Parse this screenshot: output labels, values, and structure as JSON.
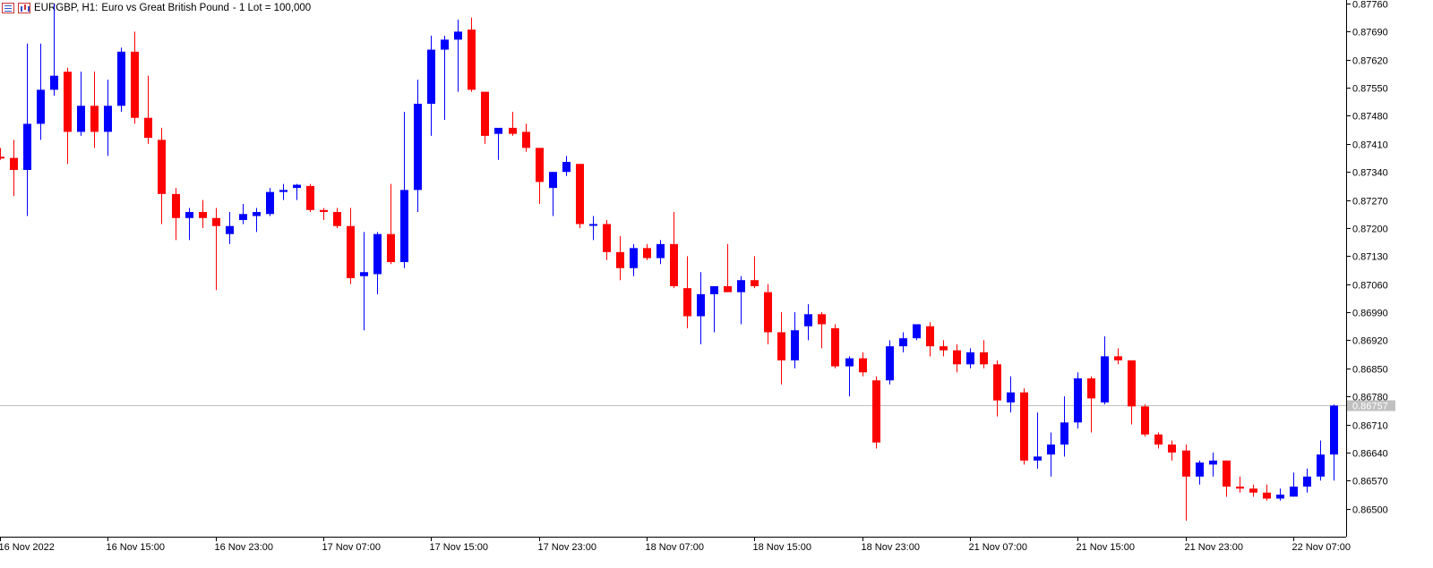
{
  "header": {
    "symbol": "EURGBP, H1:",
    "description": "Euro vs Great British Pound",
    "lot": "- 1 Lot = 100,000",
    "list_icon": "table-list-icon",
    "bars_icon": "bar-chart-icon"
  },
  "colors": {
    "bull": "#0000ff",
    "bear": "#ff0000",
    "axis": "#000000",
    "price_line": "#c0c0c0",
    "price_label_bg": "#c0c0c0",
    "price_label_text": "#ffffff"
  },
  "chart_data": {
    "type": "candlestick",
    "symbol": "EURGBP",
    "timeframe": "H1",
    "ylim": [
      0.8643,
      0.8776
    ],
    "grid": false,
    "y_ticks": [
      "0.87760",
      "0.87690",
      "0.87620",
      "0.87550",
      "0.87480",
      "0.87410",
      "0.87340",
      "0.87270",
      "0.87200",
      "0.87130",
      "0.87060",
      "0.86990",
      "0.86920",
      "0.86850",
      "0.86780",
      "0.86710",
      "0.86640",
      "0.86570",
      "0.86500"
    ],
    "x_labels": [
      "16 Nov 2022",
      "16 Nov 15:00",
      "16 Nov 23:00",
      "17 Nov 07:00",
      "17 Nov 15:00",
      "17 Nov 23:00",
      "18 Nov 07:00",
      "18 Nov 15:00",
      "18 Nov 23:00",
      "21 Nov 07:00",
      "21 Nov 15:00",
      "21 Nov 23:00",
      "22 Nov 07:00"
    ],
    "current_price": "0.86757",
    "current_value": 0.86757,
    "candles": [
      {
        "o": 0.87378,
        "h": 0.874,
        "l": 0.8737,
        "c": 0.87375
      },
      {
        "o": 0.87375,
        "h": 0.8742,
        "l": 0.8728,
        "c": 0.87345
      },
      {
        "o": 0.87345,
        "h": 0.8766,
        "l": 0.8723,
        "c": 0.8746
      },
      {
        "o": 0.8746,
        "h": 0.8766,
        "l": 0.8742,
        "c": 0.87545
      },
      {
        "o": 0.87545,
        "h": 0.8776,
        "l": 0.8753,
        "c": 0.8758
      },
      {
        "o": 0.8759,
        "h": 0.876,
        "l": 0.8736,
        "c": 0.8744
      },
      {
        "o": 0.8744,
        "h": 0.8759,
        "l": 0.8743,
        "c": 0.87505
      },
      {
        "o": 0.87505,
        "h": 0.8759,
        "l": 0.874,
        "c": 0.8744
      },
      {
        "o": 0.8744,
        "h": 0.8757,
        "l": 0.8738,
        "c": 0.87505
      },
      {
        "o": 0.87505,
        "h": 0.8765,
        "l": 0.8749,
        "c": 0.8764
      },
      {
        "o": 0.8764,
        "h": 0.8769,
        "l": 0.8746,
        "c": 0.87475
      },
      {
        "o": 0.87475,
        "h": 0.8758,
        "l": 0.8741,
        "c": 0.87425
      },
      {
        "o": 0.8742,
        "h": 0.8745,
        "l": 0.8721,
        "c": 0.87285
      },
      {
        "o": 0.87285,
        "h": 0.873,
        "l": 0.8717,
        "c": 0.87225
      },
      {
        "o": 0.87225,
        "h": 0.8725,
        "l": 0.8717,
        "c": 0.8724
      },
      {
        "o": 0.8724,
        "h": 0.8727,
        "l": 0.872,
        "c": 0.87225
      },
      {
        "o": 0.87225,
        "h": 0.8725,
        "l": 0.87045,
        "c": 0.87205
      },
      {
        "o": 0.87185,
        "h": 0.8724,
        "l": 0.8716,
        "c": 0.87205
      },
      {
        "o": 0.8722,
        "h": 0.8726,
        "l": 0.8721,
        "c": 0.87235
      },
      {
        "o": 0.8723,
        "h": 0.8725,
        "l": 0.8719,
        "c": 0.8724
      },
      {
        "o": 0.87235,
        "h": 0.873,
        "l": 0.8723,
        "c": 0.8729
      },
      {
        "o": 0.8729,
        "h": 0.8731,
        "l": 0.8727,
        "c": 0.87295
      },
      {
        "o": 0.873,
        "h": 0.8731,
        "l": 0.8727,
        "c": 0.87308
      },
      {
        "o": 0.87305,
        "h": 0.8731,
        "l": 0.8724,
        "c": 0.87245
      },
      {
        "o": 0.87245,
        "h": 0.8725,
        "l": 0.8722,
        "c": 0.8724
      },
      {
        "o": 0.8724,
        "h": 0.8725,
        "l": 0.872,
        "c": 0.87205
      },
      {
        "o": 0.87205,
        "h": 0.8725,
        "l": 0.8706,
        "c": 0.87075
      },
      {
        "o": 0.8708,
        "h": 0.8719,
        "l": 0.86945,
        "c": 0.8709
      },
      {
        "o": 0.87085,
        "h": 0.8719,
        "l": 0.87035,
        "c": 0.87185
      },
      {
        "o": 0.87185,
        "h": 0.8731,
        "l": 0.8711,
        "c": 0.87115
      },
      {
        "o": 0.87115,
        "h": 0.8749,
        "l": 0.871,
        "c": 0.87295
      },
      {
        "o": 0.87295,
        "h": 0.8757,
        "l": 0.8724,
        "c": 0.8751
      },
      {
        "o": 0.8751,
        "h": 0.8768,
        "l": 0.8743,
        "c": 0.87645
      },
      {
        "o": 0.87645,
        "h": 0.8768,
        "l": 0.8747,
        "c": 0.8767
      },
      {
        "o": 0.8767,
        "h": 0.8772,
        "l": 0.8754,
        "c": 0.8769
      },
      {
        "o": 0.87695,
        "h": 0.87725,
        "l": 0.8754,
        "c": 0.87545
      },
      {
        "o": 0.8754,
        "h": 0.8754,
        "l": 0.8741,
        "c": 0.8743
      },
      {
        "o": 0.87435,
        "h": 0.87445,
        "l": 0.8737,
        "c": 0.8745
      },
      {
        "o": 0.8745,
        "h": 0.8749,
        "l": 0.8743,
        "c": 0.87435
      },
      {
        "o": 0.8744,
        "h": 0.8746,
        "l": 0.8739,
        "c": 0.874
      },
      {
        "o": 0.874,
        "h": 0.874,
        "l": 0.8726,
        "c": 0.87315
      },
      {
        "o": 0.873,
        "h": 0.8734,
        "l": 0.8723,
        "c": 0.8734
      },
      {
        "o": 0.8734,
        "h": 0.8738,
        "l": 0.8733,
        "c": 0.87365
      },
      {
        "o": 0.8736,
        "h": 0.8736,
        "l": 0.872,
        "c": 0.8721
      },
      {
        "o": 0.8721,
        "h": 0.8723,
        "l": 0.8717,
        "c": 0.8721
      },
      {
        "o": 0.8721,
        "h": 0.8722,
        "l": 0.8712,
        "c": 0.8714
      },
      {
        "o": 0.8714,
        "h": 0.8718,
        "l": 0.8707,
        "c": 0.871
      },
      {
        "o": 0.871,
        "h": 0.8716,
        "l": 0.8708,
        "c": 0.8715
      },
      {
        "o": 0.8715,
        "h": 0.8716,
        "l": 0.8712,
        "c": 0.87125
      },
      {
        "o": 0.87125,
        "h": 0.8717,
        "l": 0.8711,
        "c": 0.8716
      },
      {
        "o": 0.8716,
        "h": 0.8724,
        "l": 0.8705,
        "c": 0.87055
      },
      {
        "o": 0.8705,
        "h": 0.8713,
        "l": 0.8695,
        "c": 0.8698
      },
      {
        "o": 0.8698,
        "h": 0.8709,
        "l": 0.8691,
        "c": 0.87035
      },
      {
        "o": 0.87035,
        "h": 0.8705,
        "l": 0.8694,
        "c": 0.87055
      },
      {
        "o": 0.87055,
        "h": 0.8716,
        "l": 0.8704,
        "c": 0.8704
      },
      {
        "o": 0.8704,
        "h": 0.8708,
        "l": 0.8696,
        "c": 0.8707
      },
      {
        "o": 0.8707,
        "h": 0.8713,
        "l": 0.8705,
        "c": 0.87055
      },
      {
        "o": 0.8704,
        "h": 0.8706,
        "l": 0.8691,
        "c": 0.8694
      },
      {
        "o": 0.8694,
        "h": 0.8699,
        "l": 0.8681,
        "c": 0.8687
      },
      {
        "o": 0.8687,
        "h": 0.8699,
        "l": 0.8685,
        "c": 0.86945
      },
      {
        "o": 0.86955,
        "h": 0.8701,
        "l": 0.8692,
        "c": 0.86985
      },
      {
        "o": 0.86985,
        "h": 0.8699,
        "l": 0.869,
        "c": 0.8696
      },
      {
        "o": 0.8695,
        "h": 0.8696,
        "l": 0.8685,
        "c": 0.86855
      },
      {
        "o": 0.86855,
        "h": 0.8688,
        "l": 0.8678,
        "c": 0.86875
      },
      {
        "o": 0.86875,
        "h": 0.8689,
        "l": 0.8683,
        "c": 0.8684
      },
      {
        "o": 0.8682,
        "h": 0.8683,
        "l": 0.8665,
        "c": 0.86665
      },
      {
        "o": 0.8682,
        "h": 0.8692,
        "l": 0.8681,
        "c": 0.86905
      },
      {
        "o": 0.86905,
        "h": 0.8694,
        "l": 0.8689,
        "c": 0.86925
      },
      {
        "o": 0.86925,
        "h": 0.8696,
        "l": 0.8692,
        "c": 0.8696
      },
      {
        "o": 0.86955,
        "h": 0.86965,
        "l": 0.8688,
        "c": 0.86905
      },
      {
        "o": 0.86905,
        "h": 0.8692,
        "l": 0.8688,
        "c": 0.86895
      },
      {
        "o": 0.86895,
        "h": 0.8691,
        "l": 0.8684,
        "c": 0.8686
      },
      {
        "o": 0.8686,
        "h": 0.869,
        "l": 0.8685,
        "c": 0.8689
      },
      {
        "o": 0.8689,
        "h": 0.8692,
        "l": 0.8685,
        "c": 0.8686
      },
      {
        "o": 0.8686,
        "h": 0.8687,
        "l": 0.8673,
        "c": 0.8677
      },
      {
        "o": 0.86765,
        "h": 0.8683,
        "l": 0.8674,
        "c": 0.8679
      },
      {
        "o": 0.8679,
        "h": 0.868,
        "l": 0.8661,
        "c": 0.8662
      },
      {
        "o": 0.8662,
        "h": 0.8674,
        "l": 0.866,
        "c": 0.8663
      },
      {
        "o": 0.86635,
        "h": 0.8669,
        "l": 0.8658,
        "c": 0.8666
      },
      {
        "o": 0.8666,
        "h": 0.8678,
        "l": 0.8663,
        "c": 0.86715
      },
      {
        "o": 0.86715,
        "h": 0.8684,
        "l": 0.867,
        "c": 0.86825
      },
      {
        "o": 0.86825,
        "h": 0.8683,
        "l": 0.8669,
        "c": 0.86775
      },
      {
        "o": 0.86765,
        "h": 0.8693,
        "l": 0.8676,
        "c": 0.8688
      },
      {
        "o": 0.8688,
        "h": 0.869,
        "l": 0.8686,
        "c": 0.8687
      },
      {
        "o": 0.8687,
        "h": 0.8687,
        "l": 0.8671,
        "c": 0.86755
      },
      {
        "o": 0.86755,
        "h": 0.8676,
        "l": 0.8668,
        "c": 0.86685
      },
      {
        "o": 0.86685,
        "h": 0.8669,
        "l": 0.8665,
        "c": 0.8666
      },
      {
        "o": 0.8666,
        "h": 0.8667,
        "l": 0.8662,
        "c": 0.8664
      },
      {
        "o": 0.86645,
        "h": 0.8666,
        "l": 0.8647,
        "c": 0.8658
      },
      {
        "o": 0.8658,
        "h": 0.8662,
        "l": 0.8656,
        "c": 0.86615
      },
      {
        "o": 0.8661,
        "h": 0.8664,
        "l": 0.8658,
        "c": 0.8662
      },
      {
        "o": 0.8662,
        "h": 0.8662,
        "l": 0.8653,
        "c": 0.86555
      },
      {
        "o": 0.86555,
        "h": 0.8658,
        "l": 0.8654,
        "c": 0.8655
      },
      {
        "o": 0.8655,
        "h": 0.8656,
        "l": 0.8653,
        "c": 0.8654
      },
      {
        "o": 0.8654,
        "h": 0.8656,
        "l": 0.8652,
        "c": 0.86525
      },
      {
        "o": 0.86525,
        "h": 0.8655,
        "l": 0.8652,
        "c": 0.86535
      },
      {
        "o": 0.8653,
        "h": 0.8659,
        "l": 0.8653,
        "c": 0.86555
      },
      {
        "o": 0.86555,
        "h": 0.866,
        "l": 0.8654,
        "c": 0.8658
      },
      {
        "o": 0.8658,
        "h": 0.8667,
        "l": 0.8657,
        "c": 0.86635
      },
      {
        "o": 0.86635,
        "h": 0.8676,
        "l": 0.8657,
        "c": 0.86757
      }
    ]
  }
}
